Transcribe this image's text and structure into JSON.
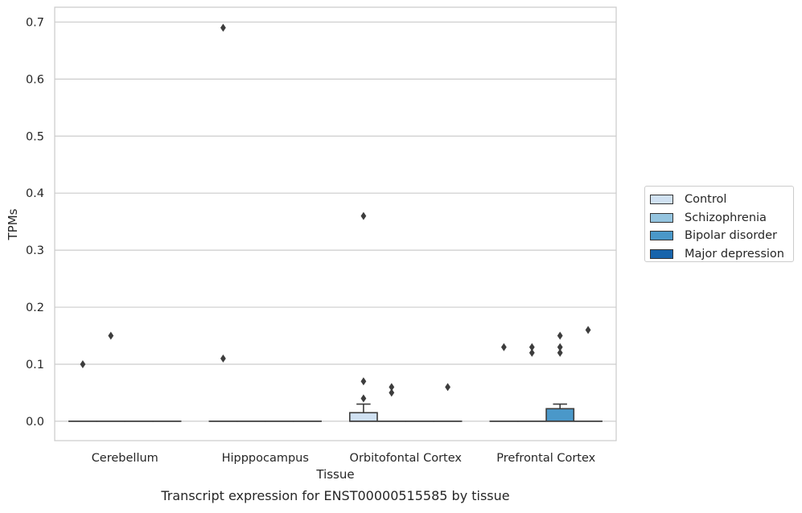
{
  "chart_data": {
    "type": "box",
    "title": "Transcript expression for ENST00000515585 by tissue",
    "xlabel": "Tissue",
    "ylabel": "TPMs",
    "ylim": [
      -0.034,
      0.726
    ],
    "yticks": [
      0.0,
      0.1,
      0.2,
      0.3,
      0.4,
      0.5,
      0.6,
      0.7
    ],
    "ytick_labels": [
      "0.0",
      "0.1",
      "0.2",
      "0.3",
      "0.4",
      "0.5",
      "0.6",
      "0.7"
    ],
    "categories": [
      "Cerebellum",
      "Hipppocampus",
      "Orbitofontal Cortex",
      "Prefrontal Cortex"
    ],
    "grid": "horizontal",
    "legend_position": "right",
    "series": [
      {
        "name": "Control",
        "color": "#d0e1f2",
        "boxes": [
          {
            "q1": 0,
            "median": 0,
            "q3": 0,
            "whisker_low": 0,
            "whisker_high": 0,
            "outliers": [
              0.1
            ]
          },
          {
            "q1": 0,
            "median": 0,
            "q3": 0,
            "whisker_low": 0,
            "whisker_high": 0,
            "outliers": [
              0.69,
              0.11
            ]
          },
          {
            "q1": 0,
            "median": 0,
            "q3": 0.015,
            "whisker_low": 0,
            "whisker_high": 0.03,
            "outliers": [
              0.36,
              0.07,
              0.04
            ]
          },
          {
            "q1": 0,
            "median": 0,
            "q3": 0,
            "whisker_low": 0,
            "whisker_high": 0,
            "outliers": [
              0.13
            ]
          }
        ]
      },
      {
        "name": "Schizophrenia",
        "color": "#94c4df",
        "boxes": [
          {
            "q1": 0,
            "median": 0,
            "q3": 0,
            "whisker_low": 0,
            "whisker_high": 0,
            "outliers": [
              0.15
            ]
          },
          {
            "q1": 0,
            "median": 0,
            "q3": 0,
            "whisker_low": 0,
            "whisker_high": 0,
            "outliers": []
          },
          {
            "q1": 0,
            "median": 0,
            "q3": 0,
            "whisker_low": 0,
            "whisker_high": 0,
            "outliers": [
              0.06,
              0.05
            ]
          },
          {
            "q1": 0,
            "median": 0,
            "q3": 0,
            "whisker_low": 0,
            "whisker_high": 0,
            "outliers": [
              0.13,
              0.12
            ]
          }
        ]
      },
      {
        "name": "Bipolar disorder",
        "color": "#4a98c9",
        "boxes": [
          {
            "q1": 0,
            "median": 0,
            "q3": 0,
            "whisker_low": 0,
            "whisker_high": 0,
            "outliers": []
          },
          {
            "q1": 0,
            "median": 0,
            "q3": 0,
            "whisker_low": 0,
            "whisker_high": 0,
            "outliers": []
          },
          {
            "q1": 0,
            "median": 0,
            "q3": 0,
            "whisker_low": 0,
            "whisker_high": 0,
            "outliers": []
          },
          {
            "q1": 0,
            "median": 0,
            "q3": 0.022,
            "whisker_low": 0,
            "whisker_high": 0.03,
            "outliers": [
              0.15,
              0.13,
              0.12
            ]
          }
        ]
      },
      {
        "name": "Major depression",
        "color": "#1764ab",
        "boxes": [
          {
            "q1": 0,
            "median": 0,
            "q3": 0,
            "whisker_low": 0,
            "whisker_high": 0,
            "outliers": []
          },
          {
            "q1": 0,
            "median": 0,
            "q3": 0,
            "whisker_low": 0,
            "whisker_high": 0,
            "outliers": []
          },
          {
            "q1": 0,
            "median": 0,
            "q3": 0,
            "whisker_low": 0,
            "whisker_high": 0,
            "outliers": [
              0.06
            ]
          },
          {
            "q1": 0,
            "median": 0,
            "q3": 0,
            "whisker_low": 0,
            "whisker_high": 0,
            "outliers": [
              0.16
            ]
          }
        ]
      }
    ]
  }
}
